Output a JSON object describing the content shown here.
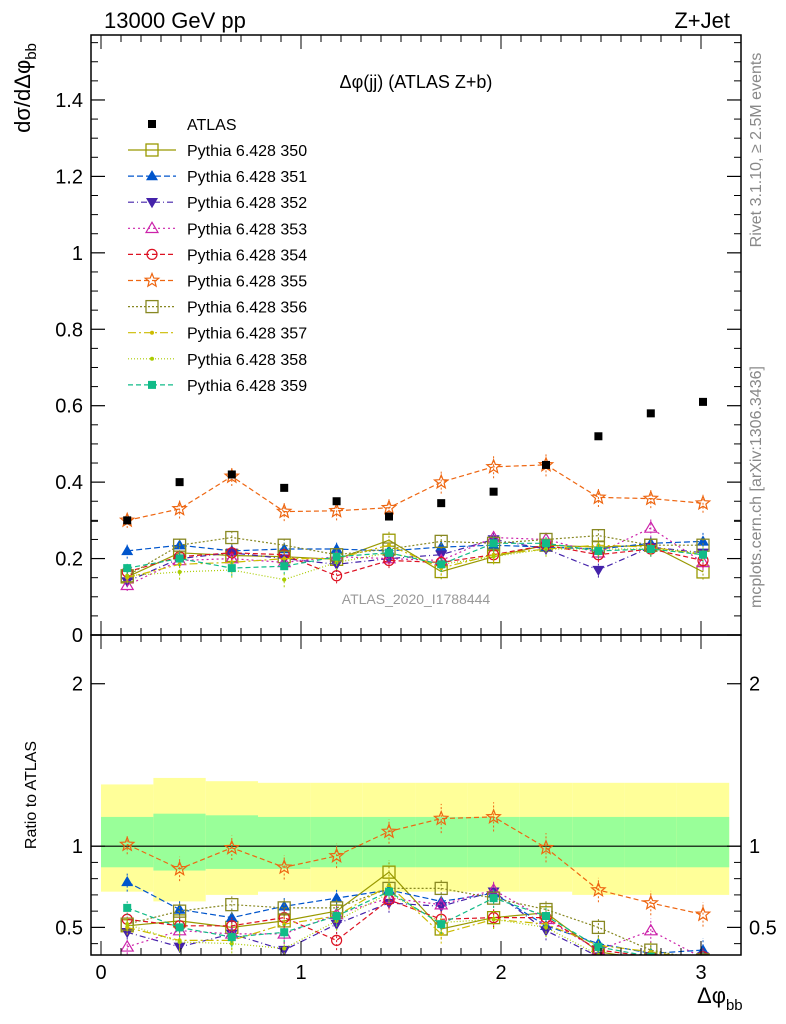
{
  "header": {
    "left": "13000 GeV pp",
    "right": "Z+Jet"
  },
  "chart_data": {
    "type": "line",
    "title": "Δφ(jj) (ATLAS Z+b)",
    "analysis_id": "ATLAS_2020_I1788444",
    "side_labels": {
      "rivet": "Rivet 3.1.10, ≥ 2.5M events",
      "mcplots": "mcplots.cern.ch [arXiv:1306.3436]"
    },
    "ylabel_main": "dσ/dΔφbb",
    "ylabel_ratio": "Ratio to ATLAS",
    "xlabel": "Δφbb",
    "xlim": [
      -0.05,
      3.2
    ],
    "ylim_main": [
      0,
      1.57
    ],
    "ylim_ratio": [
      0.33,
      2.3
    ],
    "x_ticks": [
      "0",
      "1",
      "2",
      "3"
    ],
    "y_ticks_main": [
      "0",
      "0.2",
      "0.4",
      "0.6",
      "0.8",
      "1",
      "1.2",
      "1.4"
    ],
    "y_ticks_ratio": [
      "0.5",
      "1",
      "2"
    ],
    "x": [
      0.131,
      0.393,
      0.654,
      0.916,
      1.178,
      1.44,
      1.701,
      1.963,
      2.225,
      2.487,
      2.749,
      3.01
    ],
    "band_inner": [
      [
        0.87,
        1.18
      ],
      [
        0.85,
        1.2
      ],
      [
        0.86,
        1.19
      ],
      [
        0.86,
        1.18
      ],
      [
        0.87,
        1.18
      ],
      [
        0.87,
        1.18
      ],
      [
        0.87,
        1.18
      ],
      [
        0.87,
        1.18
      ],
      [
        0.87,
        1.18
      ],
      [
        0.87,
        1.18
      ],
      [
        0.87,
        1.18
      ],
      [
        0.87,
        1.18
      ]
    ],
    "band_outer": [
      [
        0.72,
        1.38
      ],
      [
        0.66,
        1.42
      ],
      [
        0.7,
        1.4
      ],
      [
        0.72,
        1.39
      ],
      [
        0.72,
        1.39
      ],
      [
        0.72,
        1.39
      ],
      [
        0.72,
        1.39
      ],
      [
        0.72,
        1.39
      ],
      [
        0.72,
        1.39
      ],
      [
        0.7,
        1.39
      ],
      [
        0.7,
        1.39
      ],
      [
        0.7,
        1.39
      ]
    ],
    "data": {
      "name": "ATLAS",
      "values": [
        0.3,
        0.4,
        0.42,
        0.385,
        0.35,
        0.31,
        0.345,
        0.375,
        0.445,
        0.52,
        0.58,
        0.61
      ]
    },
    "series": [
      {
        "name": "Pythia 6.428 350",
        "color": "#999900",
        "dash": "",
        "marker": "square-open",
        "values": [
          0.152,
          0.215,
          0.208,
          0.205,
          0.198,
          0.248,
          0.166,
          0.205,
          0.235,
          0.23,
          0.235,
          0.165
        ],
        "ratio": [
          0.51,
          0.54,
          0.5,
          0.54,
          0.6,
          0.84,
          0.49,
          0.56,
          0.59,
          0.35,
          0.3,
          0.3
        ],
        "err": [
          0.015,
          0.02,
          0.02,
          0.02,
          0.02,
          0.025,
          0.02,
          0.02,
          0.02,
          0.02,
          0.02,
          0.02
        ]
      },
      {
        "name": "Pythia 6.428 351",
        "color": "#0055cc",
        "dash": "6,3",
        "marker": "triangle-up",
        "values": [
          0.22,
          0.235,
          0.22,
          0.225,
          0.225,
          0.22,
          0.23,
          0.235,
          0.23,
          0.225,
          0.24,
          0.245
        ],
        "ratio": [
          0.78,
          0.61,
          0.56,
          0.63,
          0.68,
          0.73,
          0.66,
          0.71,
          0.51,
          0.4,
          0.34,
          0.36
        ],
        "err": [
          0.02,
          0.02,
          0.02,
          0.02,
          0.02,
          0.02,
          0.02,
          0.02,
          0.02,
          0.02,
          0.02,
          0.025
        ]
      },
      {
        "name": "Pythia 6.428 352",
        "color": "#4422aa",
        "dash": "6,3,1,3",
        "marker": "triangle-down",
        "values": [
          0.14,
          0.2,
          0.215,
          0.2,
          0.185,
          0.2,
          0.21,
          0.25,
          0.225,
          0.17,
          0.23,
          0.215
        ],
        "ratio": [
          0.47,
          0.38,
          0.46,
          0.36,
          0.52,
          0.65,
          0.63,
          0.72,
          0.48,
          0.32,
          0.32,
          0.32
        ],
        "err": [
          0.015,
          0.02,
          0.02,
          0.02,
          0.02,
          0.02,
          0.02,
          0.02,
          0.02,
          0.02,
          0.02,
          0.02
        ]
      },
      {
        "name": "Pythia 6.428 353",
        "color": "#cc22aa",
        "dash": "2,3",
        "marker": "triangle-up-open",
        "values": [
          0.13,
          0.195,
          0.2,
          0.19,
          0.205,
          0.2,
          0.195,
          0.255,
          0.25,
          0.215,
          0.28,
          0.19
        ],
        "ratio": [
          0.38,
          0.48,
          0.46,
          0.46,
          0.58,
          0.68,
          0.64,
          0.73,
          0.55,
          0.36,
          0.48,
          0.31
        ],
        "err": [
          0.015,
          0.02,
          0.02,
          0.02,
          0.02,
          0.02,
          0.02,
          0.02,
          0.02,
          0.02,
          0.025,
          0.02
        ]
      },
      {
        "name": "Pythia 6.428 354",
        "color": "#dd1122",
        "dash": "5,3",
        "marker": "circle-open",
        "values": [
          0.165,
          0.205,
          0.215,
          0.21,
          0.155,
          0.195,
          0.19,
          0.21,
          0.235,
          0.21,
          0.225,
          0.195
        ],
        "ratio": [
          0.55,
          0.51,
          0.51,
          0.56,
          0.42,
          0.67,
          0.55,
          0.56,
          0.56,
          0.36,
          0.32,
          0.32
        ],
        "err": [
          0.015,
          0.02,
          0.02,
          0.02,
          0.02,
          0.02,
          0.02,
          0.02,
          0.02,
          0.02,
          0.02,
          0.02
        ]
      },
      {
        "name": "Pythia 6.428 355",
        "color": "#ee6611",
        "dash": "5,3",
        "marker": "star-open",
        "values": [
          0.3,
          0.33,
          0.415,
          0.323,
          0.325,
          0.333,
          0.4,
          0.44,
          0.445,
          0.36,
          0.357,
          0.345
        ],
        "ratio": [
          1.01,
          0.86,
          0.99,
          0.87,
          0.94,
          1.09,
          1.17,
          1.18,
          0.99,
          0.73,
          0.65,
          0.58
        ],
        "err": [
          0.02,
          0.025,
          0.025,
          0.025,
          0.025,
          0.025,
          0.03,
          0.03,
          0.03,
          0.025,
          0.025,
          0.025
        ]
      },
      {
        "name": "Pythia 6.428 356",
        "color": "#888822",
        "dash": "2,2",
        "marker": "square-open",
        "values": [
          0.155,
          0.235,
          0.255,
          0.235,
          0.21,
          0.225,
          0.245,
          0.24,
          0.25,
          0.26,
          0.235,
          0.235
        ],
        "ratio": [
          0.52,
          0.6,
          0.64,
          0.62,
          0.62,
          0.74,
          0.74,
          0.68,
          0.61,
          0.5,
          0.36,
          0.3
        ],
        "err": [
          0.015,
          0.02,
          0.02,
          0.02,
          0.02,
          0.02,
          0.02,
          0.02,
          0.02,
          0.02,
          0.02,
          0.02
        ]
      },
      {
        "name": "Pythia 6.428 357",
        "color": "#ccbb00",
        "dash": "8,3,2,3",
        "marker": "dot",
        "values": [
          0.15,
          0.185,
          0.19,
          0.2,
          0.2,
          0.235,
          0.175,
          0.21,
          0.225,
          0.235,
          0.23,
          0.21
        ],
        "ratio": [
          0.5,
          0.42,
          0.42,
          0.52,
          0.57,
          0.76,
          0.46,
          0.55,
          0.52,
          0.39,
          0.35,
          0.3
        ],
        "err": [
          0.015,
          0.02,
          0.02,
          0.02,
          0.02,
          0.02,
          0.02,
          0.02,
          0.02,
          0.02,
          0.02,
          0.02
        ]
      },
      {
        "name": "Pythia 6.428 358",
        "color": "#aacc00",
        "dash": "1,2",
        "marker": "dot",
        "values": [
          0.155,
          0.165,
          0.17,
          0.145,
          0.19,
          0.215,
          0.185,
          0.205,
          0.225,
          0.225,
          0.225,
          0.215
        ],
        "ratio": [
          0.52,
          0.41,
          0.4,
          0.37,
          0.54,
          0.71,
          0.53,
          0.55,
          0.5,
          0.33,
          0.32,
          0.3
        ],
        "err": [
          0.015,
          0.02,
          0.02,
          0.02,
          0.02,
          0.02,
          0.02,
          0.02,
          0.02,
          0.02,
          0.02,
          0.02
        ]
      },
      {
        "name": "Pythia 6.428 359",
        "color": "#11bb88",
        "dash": "5,3",
        "marker": "square",
        "values": [
          0.175,
          0.2,
          0.175,
          0.18,
          0.205,
          0.215,
          0.185,
          0.24,
          0.24,
          0.22,
          0.225,
          0.21
        ],
        "ratio": [
          0.62,
          0.5,
          0.44,
          0.47,
          0.57,
          0.72,
          0.52,
          0.68,
          0.57,
          0.38,
          0.32,
          0.3
        ],
        "err": [
          0.015,
          0.02,
          0.02,
          0.02,
          0.02,
          0.02,
          0.02,
          0.02,
          0.02,
          0.02,
          0.02,
          0.02
        ]
      }
    ]
  }
}
